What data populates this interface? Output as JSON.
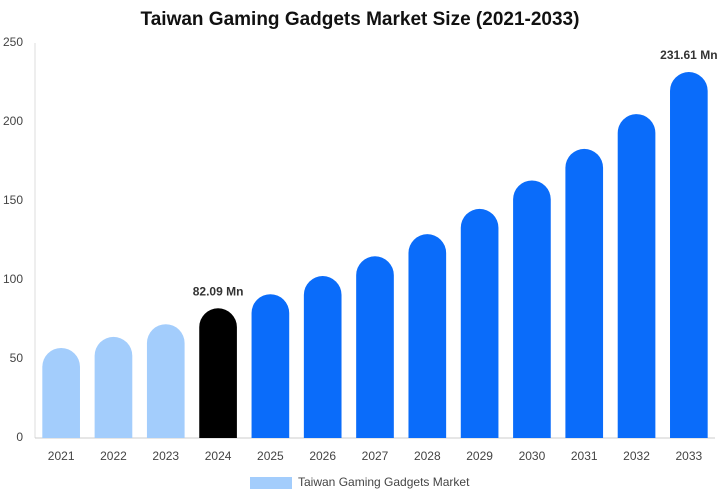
{
  "chart_data": {
    "type": "bar",
    "title": "Taiwan Gaming Gadgets Market Size (2021-2033)",
    "categories": [
      "2021",
      "2022",
      "2023",
      "2024",
      "2025",
      "2026",
      "2027",
      "2028",
      "2029",
      "2030",
      "2031",
      "2032",
      "2033"
    ],
    "series": [
      {
        "name": "Taiwan Gaming Gadgets Market",
        "color": "#a3cdfc",
        "values": [
          57,
          64,
          72,
          82.09,
          91,
          102.5,
          115,
          129,
          145,
          163,
          183,
          205,
          231.61
        ],
        "colors": [
          "#a3cdfc",
          "#a3cdfc",
          "#a3cdfc",
          "#000000",
          "#0a6cfa",
          "#0a6cfa",
          "#0a6cfa",
          "#0a6cfa",
          "#0a6cfa",
          "#0a6cfa",
          "#0a6cfa",
          "#0a6cfa",
          "#0a6cfa"
        ],
        "value_labels": [
          null,
          null,
          null,
          "82.09 Mn",
          null,
          null,
          null,
          null,
          null,
          null,
          null,
          null,
          "231.61 Mn"
        ]
      }
    ],
    "ylim": [
      0,
      250
    ],
    "yticks": [
      0,
      50,
      100,
      150,
      200,
      250
    ],
    "grid": false,
    "legend": "bottom"
  }
}
